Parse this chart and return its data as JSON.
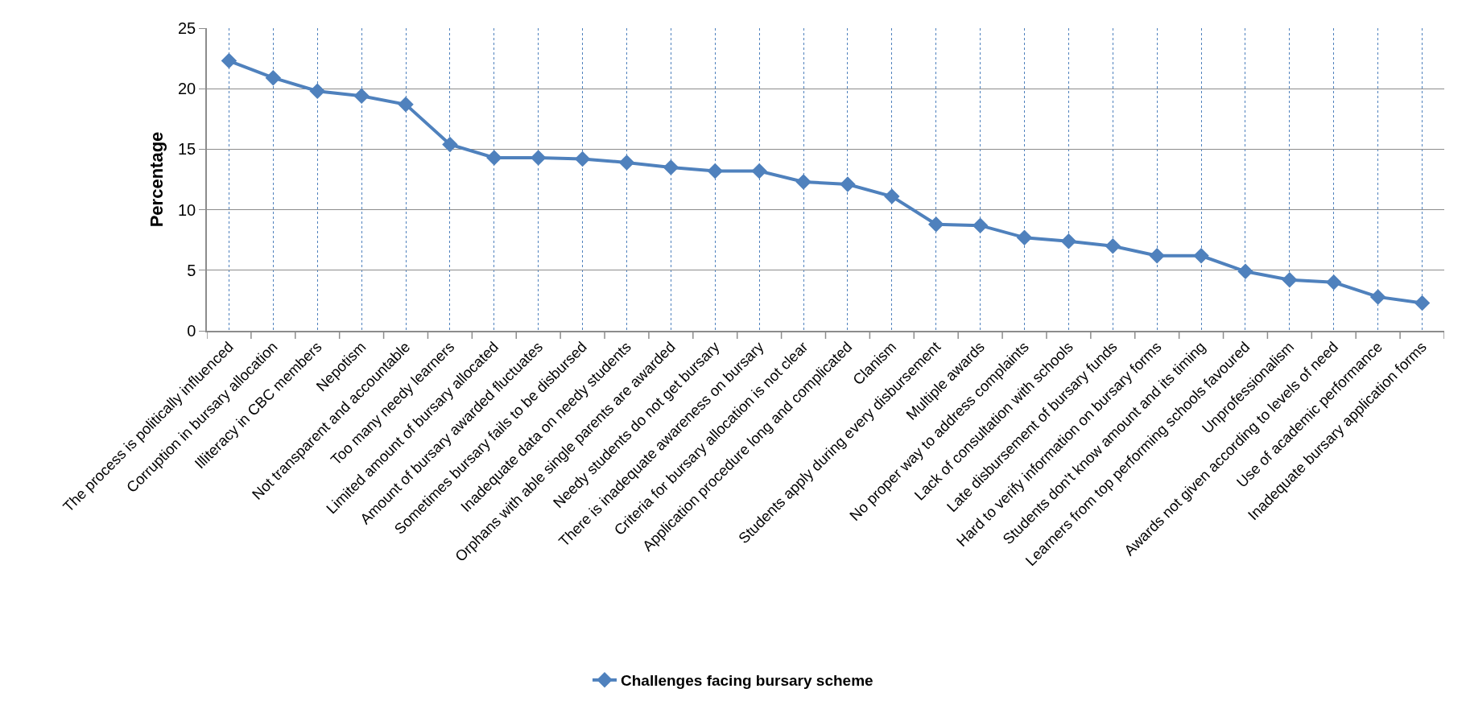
{
  "chart_data": {
    "type": "line",
    "ylabel": "Percentage",
    "categories": [
      "The process is politically influenced",
      "Corruption in bursary allocation",
      "Illiteracy in CBC members",
      "Nepotism",
      "Not transparent and accountable",
      "Too many needy learners",
      "Limited amount of bursary allocated",
      "Amount of bursary awarded fluctuates",
      "Sometimes bursary fails to be disbursed",
      "Inadequate data on needy students",
      "Orphans with able single parents are awarded",
      "Needy students do not get bursary",
      "There is inadequate awareness on bursary",
      "Criteria for bursary allocation is not clear",
      "Application procedure long and complicated",
      "Clanism",
      "Students apply during every disbursement",
      "Multiple awards",
      "No proper way to address complaints",
      "Lack of consultation with schools",
      "Late disbursement of bursary funds",
      "Hard to verify information on bursary forms",
      "Students don't know amount and its timing",
      "Learners from top performing schools favoured",
      "Unprofessionalism",
      "Awards not given according to levels of need",
      "Use of academic performance",
      "Inadequate bursary application forms"
    ],
    "series": [
      {
        "name": "Challenges facing bursary scheme",
        "color": "#4f81bd",
        "values": [
          22.3,
          20.9,
          19.8,
          19.4,
          18.7,
          15.4,
          14.3,
          14.3,
          14.2,
          13.9,
          13.5,
          13.2,
          13.2,
          12.3,
          12.1,
          11.1,
          8.8,
          8.7,
          7.7,
          7.4,
          7.0,
          6.2,
          6.2,
          4.9,
          4.2,
          4.0,
          2.8,
          2.3
        ]
      }
    ],
    "ylim": [
      0,
      25
    ],
    "yticks": [
      0,
      5,
      10,
      15,
      20,
      25
    ],
    "grid": true,
    "legend": "bottom",
    "marker": "diamond",
    "line_style": "solid"
  }
}
